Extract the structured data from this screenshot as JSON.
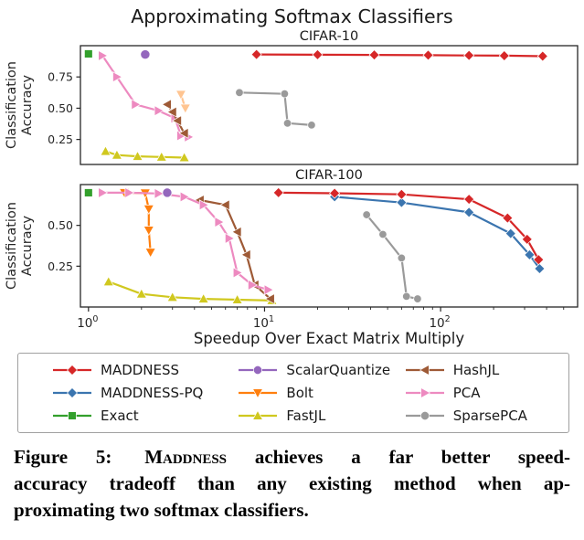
{
  "figure": {
    "title": "Approximating Softmax Classifiers"
  },
  "chart_data": [
    {
      "type": "line",
      "title": "CIFAR-10",
      "xscale": "log",
      "xlim": [
        0.9,
        600
      ],
      "ylim": [
        0.05,
        1.0
      ],
      "yticks": [
        0.25,
        0.5,
        0.75
      ],
      "ylabel_lines": [
        "Classification",
        "Accuracy"
      ],
      "grid": false,
      "series": [
        {
          "name": "FastJL",
          "color": "#d0c81f",
          "marker": "triangle-up",
          "points": [
            [
              1.25,
              0.155
            ],
            [
              1.45,
              0.125
            ],
            [
              1.9,
              0.115
            ],
            [
              2.6,
              0.11
            ],
            [
              3.5,
              0.105
            ]
          ]
        },
        {
          "name": "SparsePCA",
          "color": "#9a9a9a",
          "marker": "circle",
          "size": 5,
          "points": [
            [
              7.2,
              0.625
            ],
            [
              13,
              0.615
            ],
            [
              13.5,
              0.38
            ],
            [
              18.5,
              0.365
            ]
          ]
        },
        {
          "name": "Bolt",
          "color": "#ff7f0e",
          "marker": "triangle-down",
          "opacity": 0.45,
          "points": [
            [
              3.35,
              0.61
            ],
            [
              3.55,
              0.5
            ]
          ]
        },
        {
          "name": "PCA",
          "color": "#ed8ac0",
          "marker": "triangle-right",
          "points": [
            [
              1.2,
              0.92
            ],
            [
              1.45,
              0.75
            ],
            [
              1.85,
              0.53
            ],
            [
              2.5,
              0.48
            ],
            [
              3.1,
              0.42
            ],
            [
              3.35,
              0.28
            ],
            [
              3.7,
              0.27
            ]
          ]
        },
        {
          "name": "HashJL",
          "color": "#9e5a36",
          "marker": "triangle-left",
          "points": [
            [
              2.8,
              0.53
            ],
            [
              3.0,
              0.47
            ],
            [
              3.2,
              0.4
            ],
            [
              3.5,
              0.3
            ]
          ]
        },
        {
          "name": "ScalarQuantize",
          "color": "#9467bd",
          "marker": "circle",
          "size": 6,
          "points": [
            [
              2.1,
              0.93
            ]
          ]
        },
        {
          "name": "Exact",
          "color": "#33a02c",
          "marker": "square",
          "points": [
            [
              1.0,
              0.935
            ]
          ]
        },
        {
          "name": "MADDNESS",
          "color": "#d62728",
          "marker": "diamond",
          "points": [
            [
              9,
              0.93
            ],
            [
              20,
              0.928
            ],
            [
              42,
              0.926
            ],
            [
              85,
              0.924
            ],
            [
              145,
              0.922
            ],
            [
              230,
              0.92
            ],
            [
              380,
              0.916
            ]
          ]
        }
      ]
    },
    {
      "type": "line",
      "title": "CIFAR-100",
      "xscale": "log",
      "xlabel": "Speedup Over Exact Matrix Multiply",
      "xlim": [
        0.9,
        600
      ],
      "xticks": [
        1,
        10,
        100
      ],
      "ylim": [
        0.0,
        0.75
      ],
      "yticks": [
        0.25,
        0.5
      ],
      "ylabel_lines": [
        "Classification",
        "Accuracy"
      ],
      "grid": false,
      "series": [
        {
          "name": "FastJL",
          "color": "#d0c81f",
          "marker": "triangle-up",
          "points": [
            [
              1.3,
              0.155
            ],
            [
              2.0,
              0.08
            ],
            [
              3.0,
              0.06
            ],
            [
              4.5,
              0.05
            ],
            [
              7.0,
              0.045
            ],
            [
              11,
              0.04
            ]
          ]
        },
        {
          "name": "SparsePCA",
          "color": "#9a9a9a",
          "marker": "circle",
          "size": 5,
          "points": [
            [
              38,
              0.565
            ],
            [
              47,
              0.445
            ],
            [
              60,
              0.3
            ],
            [
              64,
              0.065
            ],
            [
              74,
              0.05
            ]
          ]
        },
        {
          "name": "Bolt",
          "color": "#ff7f0e",
          "marker": "triangle-down",
          "points": [
            [
              1.6,
              0.7
            ],
            [
              2.1,
              0.698
            ],
            [
              2.2,
              0.6
            ],
            [
              2.2,
              0.47
            ],
            [
              2.25,
              0.335
            ]
          ]
        },
        {
          "name": "HashJL",
          "color": "#9e5a36",
          "marker": "triangle-left",
          "points": [
            [
              4.3,
              0.655
            ],
            [
              6.0,
              0.625
            ],
            [
              7.0,
              0.46
            ],
            [
              7.9,
              0.32
            ],
            [
              8.8,
              0.135
            ],
            [
              10.8,
              0.05
            ]
          ]
        },
        {
          "name": "PCA",
          "color": "#ed8ac0",
          "marker": "triangle-right",
          "points": [
            [
              1.2,
              0.7
            ],
            [
              1.7,
              0.7
            ],
            [
              2.5,
              0.695
            ],
            [
              3.5,
              0.675
            ],
            [
              4.5,
              0.625
            ],
            [
              5.5,
              0.52
            ],
            [
              6.3,
              0.42
            ],
            [
              7.0,
              0.21
            ],
            [
              8.5,
              0.135
            ],
            [
              10.5,
              0.105
            ]
          ]
        },
        {
          "name": "ScalarQuantize",
          "color": "#9467bd",
          "marker": "circle",
          "size": 6,
          "points": [
            [
              2.8,
              0.7
            ]
          ]
        },
        {
          "name": "Exact",
          "color": "#33a02c",
          "marker": "square",
          "points": [
            [
              1.0,
              0.7
            ]
          ]
        },
        {
          "name": "MADDNESS-PQ",
          "color": "#3b75af",
          "marker": "diamond",
          "points": [
            [
              25,
              0.675
            ],
            [
              60,
              0.64
            ],
            [
              145,
              0.58
            ],
            [
              250,
              0.45
            ],
            [
              320,
              0.32
            ],
            [
              365,
              0.235
            ]
          ]
        },
        {
          "name": "MADDNESS",
          "color": "#d62728",
          "marker": "diamond",
          "points": [
            [
              12,
              0.7
            ],
            [
              25,
              0.697
            ],
            [
              60,
              0.69
            ],
            [
              145,
              0.66
            ],
            [
              240,
              0.545
            ],
            [
              310,
              0.415
            ],
            [
              360,
              0.29
            ]
          ]
        }
      ]
    }
  ],
  "legend": {
    "items": [
      {
        "label": "MADDNESS",
        "color": "#d62728",
        "marker": "diamond"
      },
      {
        "label": "MADDNESS-PQ",
        "color": "#3b75af",
        "marker": "diamond"
      },
      {
        "label": "Exact",
        "color": "#33a02c",
        "marker": "square"
      },
      {
        "label": "ScalarQuantize",
        "color": "#9467bd",
        "marker": "circle"
      },
      {
        "label": "Bolt",
        "color": "#ff7f0e",
        "marker": "triangle-down"
      },
      {
        "label": "FastJL",
        "color": "#d0c81f",
        "marker": "triangle-up"
      },
      {
        "label": "HashJL",
        "color": "#9e5a36",
        "marker": "triangle-left"
      },
      {
        "label": "PCA",
        "color": "#ed8ac0",
        "marker": "triangle-right"
      },
      {
        "label": "SparsePCA",
        "color": "#9a9a9a",
        "marker": "circle"
      }
    ]
  },
  "caption": {
    "line1_label": "Figure 5:",
    "line1_method": "Maddness",
    "line1_rest": "achieves a far better speed-",
    "line2": "accuracy tradeoff than any existing method when ap-",
    "line3": "proximating two softmax classifiers."
  }
}
